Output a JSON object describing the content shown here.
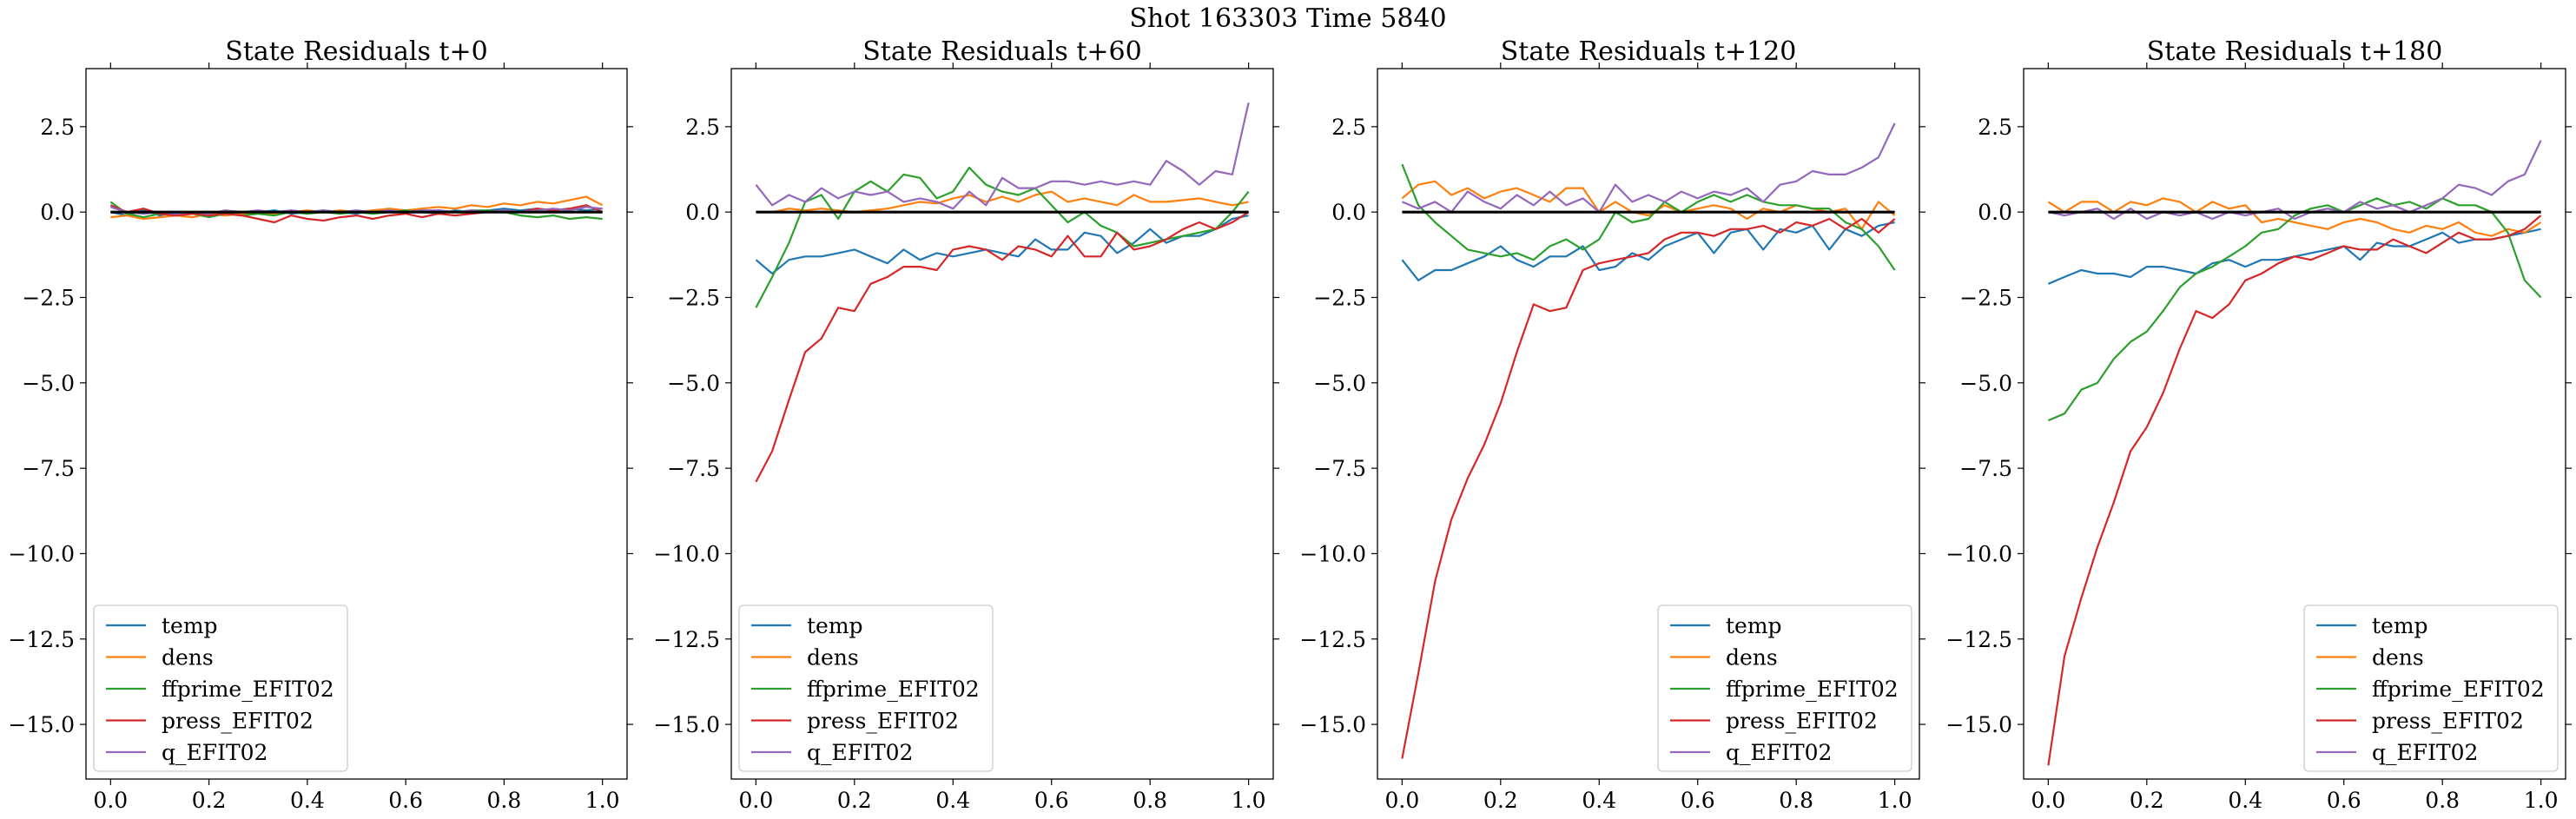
{
  "figure": {
    "suptitle": "Shot 163303   Time 5840"
  },
  "series_meta": [
    {
      "name": "temp",
      "color": "#1f77b4"
    },
    {
      "name": "dens",
      "color": "#ff7f0e"
    },
    {
      "name": "ffprime_EFIT02",
      "color": "#2ca02c"
    },
    {
      "name": "press_EFIT02",
      "color": "#d62728"
    },
    {
      "name": "q_EFIT02",
      "color": "#9467bd"
    }
  ],
  "chart_data": [
    {
      "type": "line",
      "title": "State Residuals t+0",
      "xlabel": "",
      "ylabel": "",
      "xlim": [
        -0.05,
        1.05
      ],
      "ylim": [
        -16.6,
        4.2
      ],
      "xticks": [
        "0.0",
        "0.2",
        "0.4",
        "0.6",
        "0.8",
        "1.0"
      ],
      "yticks": [
        "2.5",
        "0.0",
        "−2.5",
        "−5.0",
        "−7.5",
        "−10.0",
        "−12.5",
        "−15.0"
      ],
      "ytick_values": [
        2.5,
        0,
        -2.5,
        -5,
        -7.5,
        -10,
        -12.5,
        -15
      ],
      "legend_position": "lower-left",
      "zero_line": true,
      "x": [
        0.0,
        0.033,
        0.067,
        0.1,
        0.133,
        0.167,
        0.2,
        0.233,
        0.267,
        0.3,
        0.333,
        0.367,
        0.4,
        0.433,
        0.467,
        0.5,
        0.533,
        0.567,
        0.6,
        0.633,
        0.667,
        0.7,
        0.733,
        0.767,
        0.8,
        0.833,
        0.867,
        0.9,
        0.933,
        0.967,
        1.0
      ],
      "series": [
        {
          "name": "temp",
          "values": [
            0.0,
            -0.1,
            0.05,
            -0.1,
            0.0,
            -0.05,
            -0.1,
            0.0,
            -0.05,
            0.0,
            0.05,
            -0.05,
            0.0,
            0.05,
            0.0,
            -0.05,
            0.05,
            0.0,
            0.05,
            0.0,
            -0.05,
            0.05,
            0.0,
            0.05,
            0.1,
            0.05,
            0.1,
            0.05,
            0.1,
            0.05,
            0.1
          ]
        },
        {
          "name": "dens",
          "values": [
            -0.15,
            -0.1,
            -0.2,
            -0.15,
            -0.1,
            -0.15,
            -0.05,
            -0.1,
            -0.05,
            0.0,
            -0.05,
            0.0,
            0.05,
            0.0,
            0.05,
            0.0,
            0.05,
            0.1,
            0.05,
            0.1,
            0.15,
            0.1,
            0.2,
            0.15,
            0.25,
            0.2,
            0.3,
            0.25,
            0.35,
            0.45,
            0.2
          ]
        },
        {
          "name": "ffprime_EFIT02",
          "values": [
            0.3,
            -0.05,
            -0.15,
            -0.05,
            -0.1,
            -0.05,
            -0.15,
            -0.05,
            -0.1,
            -0.05,
            -0.1,
            0.0,
            -0.05,
            0.0,
            -0.05,
            0.0,
            -0.05,
            0.0,
            0.05,
            0.0,
            0.05,
            0.0,
            0.05,
            0.05,
            0.0,
            -0.1,
            -0.15,
            -0.1,
            -0.2,
            -0.15,
            -0.2
          ]
        },
        {
          "name": "press_EFIT02",
          "values": [
            0.2,
            0.0,
            0.1,
            -0.05,
            -0.1,
            -0.05,
            -0.1,
            -0.05,
            -0.1,
            -0.2,
            -0.3,
            -0.1,
            -0.2,
            -0.25,
            -0.15,
            -0.1,
            -0.2,
            -0.1,
            -0.05,
            -0.15,
            -0.05,
            -0.1,
            -0.05,
            0.0,
            0.05,
            0.0,
            0.1,
            0.05,
            0.1,
            0.2,
            0.0
          ]
        },
        {
          "name": "q_EFIT02",
          "values": [
            0.15,
            0.0,
            -0.05,
            0.0,
            -0.05,
            0.0,
            -0.05,
            0.05,
            0.0,
            0.05,
            0.0,
            0.05,
            0.0,
            0.05,
            0.0,
            0.05,
            0.0,
            0.05,
            0.0,
            0.05,
            0.05,
            0.0,
            0.05,
            0.0,
            0.05,
            0.0,
            0.05,
            0.1,
            0.05,
            0.15,
            0.1
          ]
        }
      ]
    },
    {
      "type": "line",
      "title": "State Residuals t+60",
      "xlabel": "",
      "ylabel": "",
      "xlim": [
        -0.05,
        1.05
      ],
      "ylim": [
        -16.6,
        4.2
      ],
      "xticks": [
        "0.0",
        "0.2",
        "0.4",
        "0.6",
        "0.8",
        "1.0"
      ],
      "yticks": [
        "2.5",
        "0.0",
        "−2.5",
        "−5.0",
        "−7.5",
        "−10.0",
        "−12.5",
        "−15.0"
      ],
      "ytick_values": [
        2.5,
        0,
        -2.5,
        -5,
        -7.5,
        -10,
        -12.5,
        -15
      ],
      "legend_position": "lower-left",
      "zero_line": true,
      "x": [
        0.0,
        0.033,
        0.067,
        0.1,
        0.133,
        0.167,
        0.2,
        0.233,
        0.267,
        0.3,
        0.333,
        0.367,
        0.4,
        0.433,
        0.467,
        0.5,
        0.533,
        0.567,
        0.6,
        0.633,
        0.667,
        0.7,
        0.733,
        0.767,
        0.8,
        0.833,
        0.867,
        0.9,
        0.933,
        0.967,
        1.0
      ],
      "series": [
        {
          "name": "temp",
          "values": [
            -1.4,
            -1.8,
            -1.4,
            -1.3,
            -1.3,
            -1.2,
            -1.1,
            -1.3,
            -1.5,
            -1.1,
            -1.4,
            -1.2,
            -1.3,
            -1.2,
            -1.1,
            -1.2,
            -1.3,
            -0.8,
            -1.1,
            -1.1,
            -0.6,
            -0.7,
            -1.2,
            -0.9,
            -0.5,
            -0.9,
            -0.7,
            -0.7,
            -0.5,
            -0.2,
            -0.1
          ]
        },
        {
          "name": "dens",
          "values": [
            0.0,
            0.0,
            0.1,
            0.05,
            0.1,
            0.05,
            0.0,
            0.05,
            0.1,
            0.2,
            0.3,
            0.25,
            0.4,
            0.5,
            0.3,
            0.45,
            0.3,
            0.5,
            0.6,
            0.3,
            0.4,
            0.3,
            0.2,
            0.5,
            0.3,
            0.3,
            0.35,
            0.4,
            0.3,
            0.2,
            0.3
          ]
        },
        {
          "name": "ffprime_EFIT02",
          "values": [
            -2.8,
            -1.9,
            -0.9,
            0.3,
            0.5,
            -0.2,
            0.6,
            0.9,
            0.6,
            1.1,
            1.0,
            0.4,
            0.6,
            1.3,
            0.8,
            0.6,
            0.5,
            0.7,
            0.2,
            -0.3,
            0.0,
            -0.4,
            -0.6,
            -1.0,
            -0.9,
            -0.8,
            -0.7,
            -0.6,
            -0.5,
            0.0,
            0.6
          ]
        },
        {
          "name": "press_EFIT02",
          "values": [
            -7.9,
            -7.0,
            -5.5,
            -4.1,
            -3.7,
            -2.8,
            -2.9,
            -2.1,
            -1.9,
            -1.6,
            -1.6,
            -1.7,
            -1.1,
            -1.0,
            -1.1,
            -1.4,
            -1.0,
            -1.1,
            -1.3,
            -0.7,
            -1.3,
            -1.3,
            -0.6,
            -1.1,
            -1.0,
            -0.8,
            -0.5,
            -0.3,
            -0.5,
            -0.3,
            0.0
          ]
        },
        {
          "name": "q_EFIT02",
          "values": [
            0.8,
            0.2,
            0.5,
            0.3,
            0.7,
            0.4,
            0.6,
            0.5,
            0.6,
            0.3,
            0.4,
            0.3,
            0.1,
            0.6,
            0.2,
            1.0,
            0.7,
            0.7,
            0.9,
            0.9,
            0.8,
            0.9,
            0.8,
            0.9,
            0.8,
            1.5,
            1.2,
            0.8,
            1.2,
            1.1,
            3.2
          ]
        }
      ]
    },
    {
      "type": "line",
      "title": "State Residuals t+120",
      "xlabel": "",
      "ylabel": "",
      "xlim": [
        -0.05,
        1.05
      ],
      "ylim": [
        -16.6,
        4.2
      ],
      "xticks": [
        "0.0",
        "0.2",
        "0.4",
        "0.6",
        "0.8",
        "1.0"
      ],
      "yticks": [
        "2.5",
        "0.0",
        "−2.5",
        "−5.0",
        "−7.5",
        "−10.0",
        "−12.5",
        "−15.0"
      ],
      "ytick_values": [
        2.5,
        0,
        -2.5,
        -5,
        -7.5,
        -10,
        -12.5,
        -15
      ],
      "legend_position": "lower-right",
      "zero_line": true,
      "x": [
        0.0,
        0.033,
        0.067,
        0.1,
        0.133,
        0.167,
        0.2,
        0.233,
        0.267,
        0.3,
        0.333,
        0.367,
        0.4,
        0.433,
        0.467,
        0.5,
        0.533,
        0.567,
        0.6,
        0.633,
        0.667,
        0.7,
        0.733,
        0.767,
        0.8,
        0.833,
        0.867,
        0.9,
        0.933,
        0.967,
        1.0
      ],
      "series": [
        {
          "name": "temp",
          "values": [
            -1.4,
            -2.0,
            -1.7,
            -1.7,
            -1.5,
            -1.3,
            -1.0,
            -1.4,
            -1.6,
            -1.3,
            -1.3,
            -1.0,
            -1.7,
            -1.6,
            -1.2,
            -1.4,
            -1.0,
            -0.8,
            -0.6,
            -1.2,
            -0.6,
            -0.5,
            -1.1,
            -0.5,
            -0.6,
            -0.4,
            -1.1,
            -0.5,
            -0.7,
            -0.4,
            -0.3
          ]
        },
        {
          "name": "dens",
          "values": [
            0.4,
            0.8,
            0.9,
            0.5,
            0.7,
            0.4,
            0.6,
            0.7,
            0.5,
            0.3,
            0.7,
            0.7,
            0.0,
            0.3,
            0.0,
            -0.1,
            0.2,
            0.0,
            0.1,
            0.2,
            0.1,
            -0.2,
            0.1,
            0.0,
            0.2,
            0.1,
            0.0,
            0.1,
            -0.5,
            0.3,
            -0.1
          ]
        },
        {
          "name": "ffprime_EFIT02",
          "values": [
            1.4,
            0.2,
            -0.3,
            -0.7,
            -1.1,
            -1.2,
            -1.3,
            -1.2,
            -1.4,
            -1.0,
            -0.8,
            -1.1,
            -0.8,
            0.0,
            -0.3,
            -0.2,
            0.3,
            0.0,
            0.3,
            0.5,
            0.3,
            0.5,
            0.3,
            0.2,
            0.2,
            0.1,
            0.1,
            -0.3,
            -0.5,
            -1.0,
            -1.7
          ]
        },
        {
          "name": "press_EFIT02",
          "values": [
            -16.0,
            -13.5,
            -10.8,
            -9.0,
            -7.8,
            -6.8,
            -5.6,
            -4.1,
            -2.7,
            -2.9,
            -2.8,
            -1.7,
            -1.5,
            -1.4,
            -1.3,
            -1.2,
            -0.8,
            -0.6,
            -0.6,
            -0.7,
            -0.5,
            -0.5,
            -0.4,
            -0.6,
            -0.3,
            -0.4,
            -0.2,
            -0.5,
            -0.2,
            -0.6,
            -0.2
          ]
        },
        {
          "name": "q_EFIT02",
          "values": [
            0.3,
            0.1,
            0.3,
            0.0,
            0.6,
            0.3,
            0.1,
            0.5,
            0.2,
            0.6,
            0.2,
            0.4,
            0.0,
            0.8,
            0.3,
            0.5,
            0.3,
            0.6,
            0.4,
            0.6,
            0.5,
            0.7,
            0.3,
            0.8,
            0.9,
            1.2,
            1.1,
            1.1,
            1.3,
            1.6,
            2.6
          ]
        }
      ]
    },
    {
      "type": "line",
      "title": "State Residuals t+180",
      "xlabel": "",
      "ylabel": "",
      "xlim": [
        -0.05,
        1.05
      ],
      "ylim": [
        -16.6,
        4.2
      ],
      "xticks": [
        "0.0",
        "0.2",
        "0.4",
        "0.6",
        "0.8",
        "1.0"
      ],
      "yticks": [
        "2.5",
        "0.0",
        "−2.5",
        "−5.0",
        "−7.5",
        "−10.0",
        "−12.5",
        "−15.0"
      ],
      "ytick_values": [
        2.5,
        0,
        -2.5,
        -5,
        -7.5,
        -10,
        -12.5,
        -15
      ],
      "legend_position": "lower-right",
      "zero_line": true,
      "x": [
        0.0,
        0.033,
        0.067,
        0.1,
        0.133,
        0.167,
        0.2,
        0.233,
        0.267,
        0.3,
        0.333,
        0.367,
        0.4,
        0.433,
        0.467,
        0.5,
        0.533,
        0.567,
        0.6,
        0.633,
        0.667,
        0.7,
        0.733,
        0.767,
        0.8,
        0.833,
        0.867,
        0.9,
        0.933,
        0.967,
        1.0
      ],
      "series": [
        {
          "name": "temp",
          "values": [
            -2.1,
            -1.9,
            -1.7,
            -1.8,
            -1.8,
            -1.9,
            -1.6,
            -1.6,
            -1.7,
            -1.8,
            -1.5,
            -1.4,
            -1.6,
            -1.4,
            -1.4,
            -1.3,
            -1.2,
            -1.1,
            -1.0,
            -1.4,
            -0.9,
            -1.0,
            -1.0,
            -0.8,
            -0.6,
            -0.9,
            -0.8,
            -0.8,
            -0.7,
            -0.6,
            -0.5
          ]
        },
        {
          "name": "dens",
          "values": [
            0.3,
            0.0,
            0.3,
            0.3,
            0.0,
            0.3,
            0.2,
            0.4,
            0.3,
            0.0,
            0.3,
            0.1,
            0.2,
            -0.3,
            -0.2,
            -0.3,
            -0.4,
            -0.5,
            -0.3,
            -0.2,
            -0.3,
            -0.5,
            -0.6,
            -0.4,
            -0.5,
            -0.3,
            -0.6,
            -0.7,
            -0.5,
            -0.6,
            -0.3
          ]
        },
        {
          "name": "ffprime_EFIT02",
          "values": [
            -6.1,
            -5.9,
            -5.2,
            -5.0,
            -4.3,
            -3.8,
            -3.5,
            -2.9,
            -2.2,
            -1.8,
            -1.6,
            -1.3,
            -1.0,
            -0.6,
            -0.5,
            -0.1,
            0.1,
            0.2,
            0.0,
            0.2,
            0.4,
            0.2,
            0.3,
            0.1,
            0.4,
            0.2,
            0.2,
            0.0,
            -0.6,
            -2.0,
            -2.5
          ]
        },
        {
          "name": "press_EFIT02",
          "values": [
            -16.2,
            -13.0,
            -11.3,
            -9.8,
            -8.5,
            -7.0,
            -6.3,
            -5.3,
            -4.0,
            -2.9,
            -3.1,
            -2.7,
            -2.0,
            -1.8,
            -1.5,
            -1.3,
            -1.4,
            -1.2,
            -1.0,
            -1.1,
            -1.1,
            -0.8,
            -1.0,
            -1.2,
            -0.9,
            -0.6,
            -0.8,
            -0.8,
            -0.7,
            -0.5,
            -0.1
          ]
        },
        {
          "name": "q_EFIT02",
          "values": [
            0.0,
            -0.1,
            0.0,
            0.1,
            -0.2,
            0.1,
            -0.2,
            0.0,
            -0.1,
            0.0,
            -0.2,
            0.0,
            -0.1,
            0.0,
            0.1,
            -0.2,
            0.0,
            0.1,
            0.0,
            0.3,
            0.1,
            0.2,
            0.0,
            0.2,
            0.4,
            0.8,
            0.7,
            0.5,
            0.9,
            1.1,
            2.1
          ]
        }
      ]
    }
  ]
}
